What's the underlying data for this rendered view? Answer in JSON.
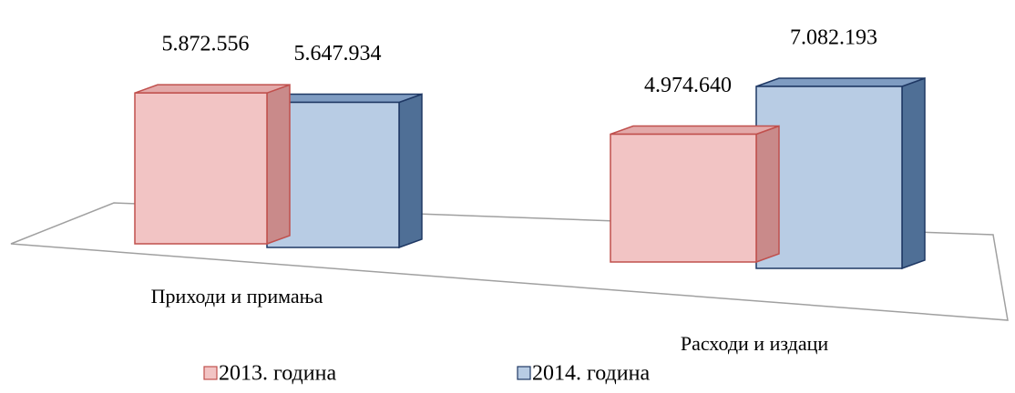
{
  "chart_data": {
    "type": "bar3d",
    "categories": [
      "Приходи и примања",
      "Расходи и издаци"
    ],
    "series": [
      {
        "name": "2013. година",
        "color": "#f2c4c4",
        "values": [
          5872556,
          4974640
        ],
        "value_labels": [
          "5.872.556",
          "4.974.640"
        ]
      },
      {
        "name": "2014. година",
        "color": "#b8cce4",
        "values": [
          5647934,
          7082193
        ],
        "value_labels": [
          "5.647.934",
          "7.082.193"
        ]
      }
    ]
  }
}
